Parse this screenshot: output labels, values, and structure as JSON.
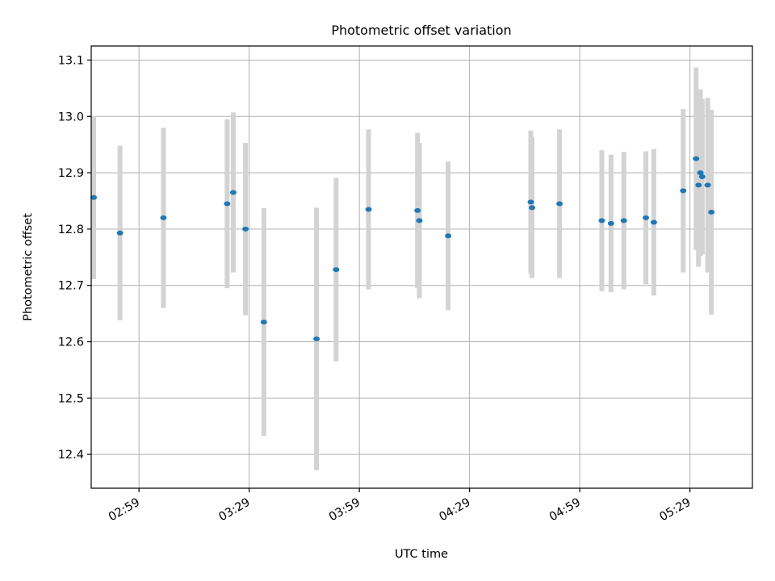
{
  "chart_data": {
    "type": "scatter",
    "title": "Photometric offset variation",
    "xlabel": "UTC time",
    "ylabel": "Photometric offset",
    "x_axis": {
      "ticks": [
        {
          "t": "02:59",
          "label": "02:59"
        },
        {
          "t": "03:29",
          "label": "03:29"
        },
        {
          "t": "03:59",
          "label": "03:59"
        },
        {
          "t": "04:29",
          "label": "04:29"
        },
        {
          "t": "04:59",
          "label": "04:59"
        },
        {
          "t": "05:29",
          "label": "05:29"
        }
      ],
      "xlim": [
        "02:46",
        "05:46"
      ]
    },
    "y_axis": {
      "ticks": [
        12.4,
        12.5,
        12.6,
        12.7,
        12.8,
        12.9,
        13.0,
        13.1
      ],
      "tick_labels": [
        "12.4",
        "12.5",
        "12.6",
        "12.7",
        "12.8",
        "12.9",
        "13.0",
        "13.1"
      ],
      "ylim": [
        12.34,
        13.125
      ]
    },
    "grid": true,
    "marker_color": "#1f77b4",
    "errorbar_color": "#d3d3d3",
    "points": [
      {
        "t": "02:46:40",
        "y": 12.856,
        "err": 0.145
      },
      {
        "t": "02:53:50",
        "y": 12.793,
        "err": 0.155
      },
      {
        "t": "03:05:40",
        "y": 12.82,
        "err": 0.16
      },
      {
        "t": "03:23:00",
        "y": 12.845,
        "err": 0.15
      },
      {
        "t": "03:24:40",
        "y": 12.865,
        "err": 0.142
      },
      {
        "t": "03:28:00",
        "y": 12.8,
        "err": 0.153
      },
      {
        "t": "03:33:00",
        "y": 12.635,
        "err": 0.202
      },
      {
        "t": "03:47:20",
        "y": 12.605,
        "err": 0.233
      },
      {
        "t": "03:52:40",
        "y": 12.728,
        "err": 0.163
      },
      {
        "t": "04:01:30",
        "y": 12.835,
        "err": 0.142
      },
      {
        "t": "04:14:50",
        "y": 12.833,
        "err": 0.138
      },
      {
        "t": "04:15:20",
        "y": 12.815,
        "err": 0.138
      },
      {
        "t": "04:23:10",
        "y": 12.788,
        "err": 0.132
      },
      {
        "t": "04:45:40",
        "y": 12.848,
        "err": 0.127
      },
      {
        "t": "04:46:00",
        "y": 12.838,
        "err": 0.125
      },
      {
        "t": "04:53:30",
        "y": 12.845,
        "err": 0.132
      },
      {
        "t": "05:05:00",
        "y": 12.815,
        "err": 0.125
      },
      {
        "t": "05:07:30",
        "y": 12.81,
        "err": 0.122
      },
      {
        "t": "05:11:00",
        "y": 12.815,
        "err": 0.122
      },
      {
        "t": "05:17:00",
        "y": 12.82,
        "err": 0.118
      },
      {
        "t": "05:19:10",
        "y": 12.812,
        "err": 0.13
      },
      {
        "t": "05:27:10",
        "y": 12.868,
        "err": 0.145
      },
      {
        "t": "05:30:40",
        "y": 12.925,
        "err": 0.162
      },
      {
        "t": "05:31:20",
        "y": 12.878,
        "err": 0.145
      },
      {
        "t": "05:31:50",
        "y": 12.9,
        "err": 0.148
      },
      {
        "t": "05:32:20",
        "y": 12.893,
        "err": 0.138
      },
      {
        "t": "05:33:50",
        "y": 12.878,
        "err": 0.155
      },
      {
        "t": "05:34:50",
        "y": 12.83,
        "err": 0.182
      }
    ]
  }
}
